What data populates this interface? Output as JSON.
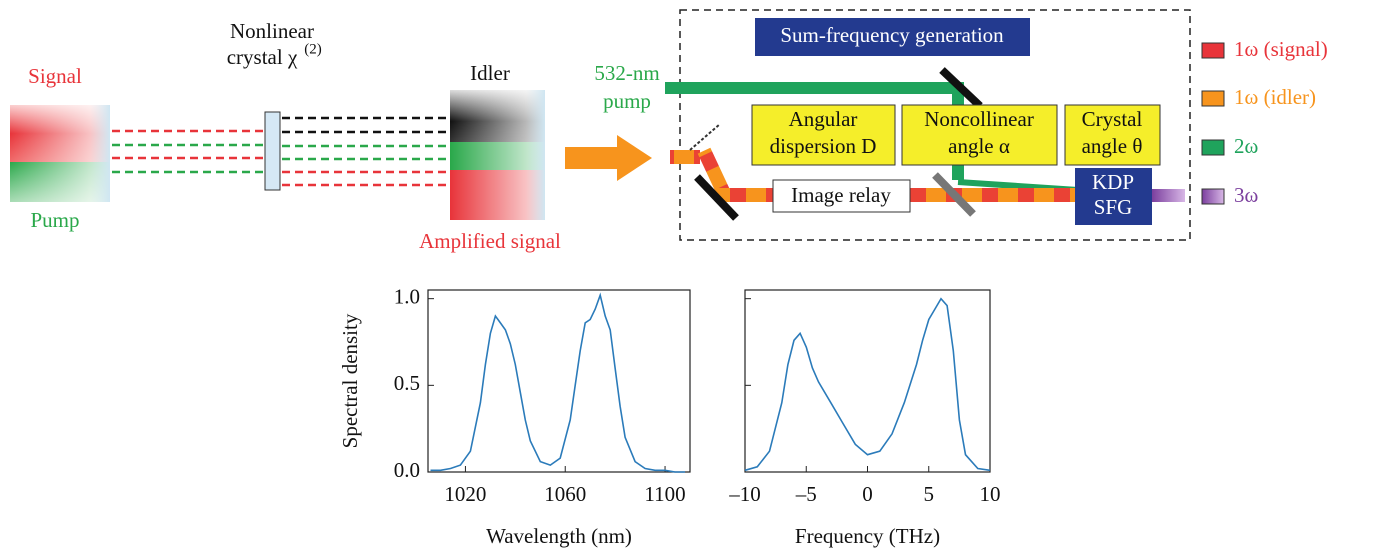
{
  "diagram": {
    "signal": "Signal",
    "pump": "Pump",
    "crystal_line1": "Nonlinear",
    "crystal_line2": "crystal χ",
    "crystal_sup": "(2)",
    "idler": "Idler",
    "amplified": "Amplified signal",
    "pump532_line1": "532-nm",
    "pump532_line2": "pump",
    "sfg_title": "Sum-frequency generation",
    "angular": [
      "Angular",
      "dispersion D"
    ],
    "noncollinear": [
      "Noncollinear",
      "angle α"
    ],
    "crystal_angle": [
      "Crystal",
      "angle θ"
    ],
    "image_relay": "Image relay",
    "kdp": [
      "KDP",
      "SFG"
    ],
    "legend": [
      "1ω (signal)",
      "1ω (idler)",
      "2ω",
      "3ω"
    ]
  },
  "chart_data": [
    {
      "type": "line",
      "xlabel": "Wavelength (nm)",
      "ylabel": "Spectral density",
      "x": [
        1006,
        1010,
        1014,
        1018,
        1022,
        1026,
        1028,
        1030,
        1032,
        1034,
        1036,
        1038,
        1040,
        1042,
        1044,
        1046,
        1050,
        1054,
        1058,
        1062,
        1064,
        1066,
        1068,
        1070,
        1072,
        1074,
        1076,
        1078,
        1080,
        1082,
        1084,
        1088,
        1092,
        1096,
        1100,
        1104,
        1108
      ],
      "values": [
        0.01,
        0.01,
        0.02,
        0.04,
        0.12,
        0.4,
        0.62,
        0.8,
        0.9,
        0.86,
        0.82,
        0.74,
        0.62,
        0.46,
        0.3,
        0.18,
        0.06,
        0.04,
        0.08,
        0.3,
        0.5,
        0.7,
        0.86,
        0.88,
        0.94,
        1.02,
        0.9,
        0.82,
        0.6,
        0.38,
        0.2,
        0.06,
        0.02,
        0.01,
        0.01,
        0.0,
        0.0
      ],
      "color": "#2b7bba",
      "xlim": [
        1005,
        1110
      ],
      "ylim": [
        0,
        1.05
      ],
      "xticks": [
        1020,
        1060,
        1100
      ],
      "yticks": [
        {
          "value": 0,
          "label": "0.0"
        },
        0.5,
        {
          "value": 1,
          "label": "1.0"
        }
      ]
    },
    {
      "type": "line",
      "xlabel": "Frequency (THz)",
      "x": [
        -10,
        -9,
        -8,
        -7,
        -6.5,
        -6,
        -5.5,
        -5,
        -4.5,
        -4,
        -3,
        -2,
        -1,
        0,
        1,
        2,
        3,
        4,
        4.5,
        5,
        5.5,
        6,
        6.5,
        7,
        7.5,
        8,
        9,
        10
      ],
      "values": [
        0.01,
        0.03,
        0.12,
        0.4,
        0.62,
        0.76,
        0.8,
        0.72,
        0.6,
        0.52,
        0.4,
        0.28,
        0.16,
        0.1,
        0.12,
        0.22,
        0.4,
        0.62,
        0.76,
        0.88,
        0.94,
        1.0,
        0.96,
        0.7,
        0.3,
        0.1,
        0.02,
        0.01
      ],
      "color": "#2b7bba",
      "xlim": [
        -10,
        10
      ],
      "ylim": [
        0,
        1.05
      ],
      "xticks": [
        {
          "value": -10,
          "label": "–10"
        },
        {
          "value": -5,
          "label": "–5"
        },
        0,
        5,
        10
      ],
      "yticks": [
        0,
        0.5,
        1
      ]
    }
  ]
}
